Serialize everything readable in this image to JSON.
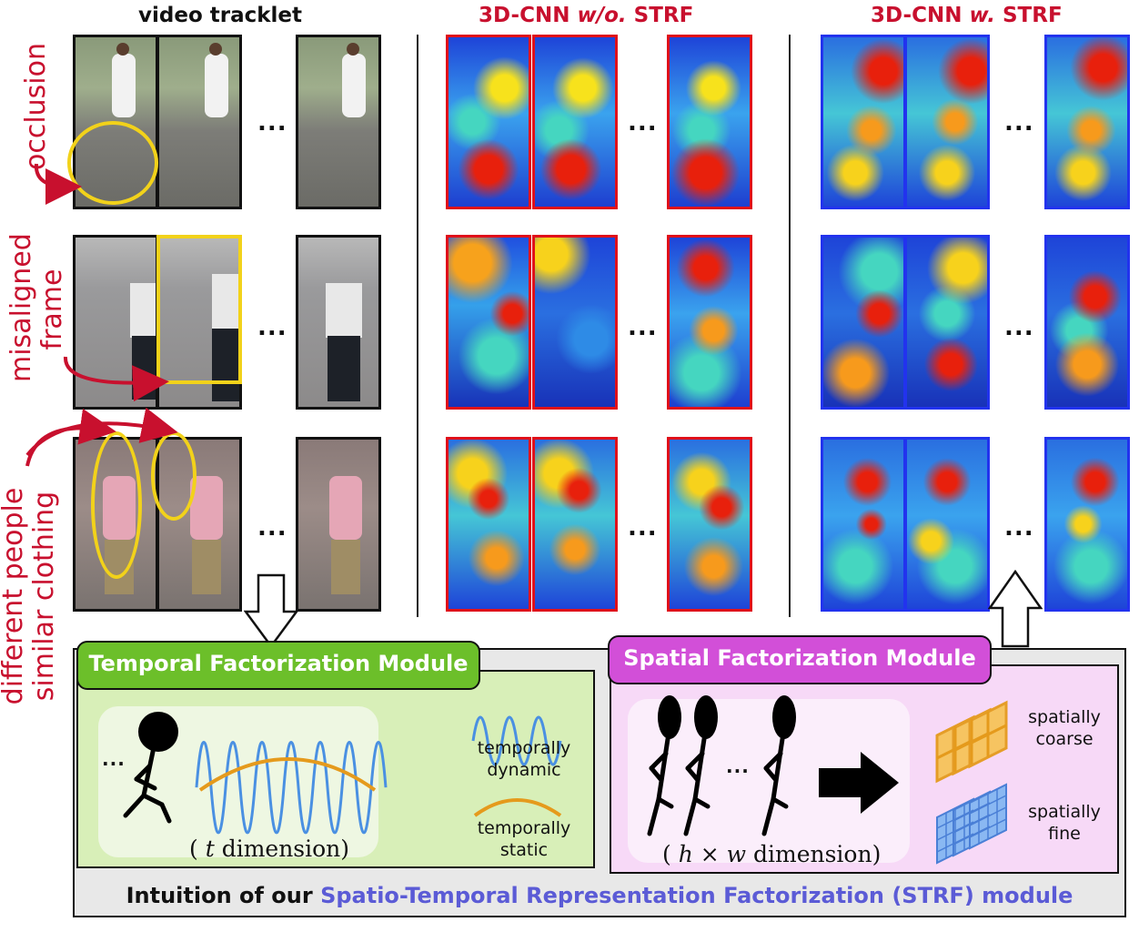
{
  "headers": {
    "video": "video tracklet",
    "wo_prefix": "3D-CNN ",
    "wo_italic": "w/o.",
    "wo_suffix": " STRF",
    "w_prefix": "3D-CNN ",
    "w_italic": "w.",
    "w_suffix": " STRF"
  },
  "side_labels": {
    "occlusion": "occlusion",
    "misaligned_1": "misaligned",
    "misaligned_2": "frame",
    "different_1": "different people",
    "different_2": "similar clothing"
  },
  "ellipsis": "...",
  "temporal_module": {
    "title": "Temporal Factorization Module",
    "legend_dynamic": [
      "temporally",
      "dynamic"
    ],
    "legend_static": [
      "temporally",
      "static"
    ],
    "dim_open": "( ",
    "dim_var": "t",
    "dim_close": "  dimension)"
  },
  "spatial_module": {
    "title": "Spatial Factorization Module",
    "coarse": [
      "spatially",
      "coarse"
    ],
    "fine": [
      "spatially",
      "fine"
    ],
    "dim_open": "( ",
    "dim_var": "h × w",
    "dim_close": " dimension)"
  },
  "caption": {
    "prefix": "Intuition of our ",
    "highlight": "Spatio-Temporal Representation Factorization (STRF)",
    "suffix": " module"
  },
  "colors": {
    "red": "#c8102e",
    "heatmap_red_border": "#e0101a",
    "heatmap_blue_border": "#2233ee",
    "temporal_green": "#6cbf2a",
    "spatial_magenta": "#d24fd8",
    "caption_blue": "#5b5bd6",
    "wave_blue": "#4a90e2",
    "wave_orange": "#e59a1c"
  }
}
